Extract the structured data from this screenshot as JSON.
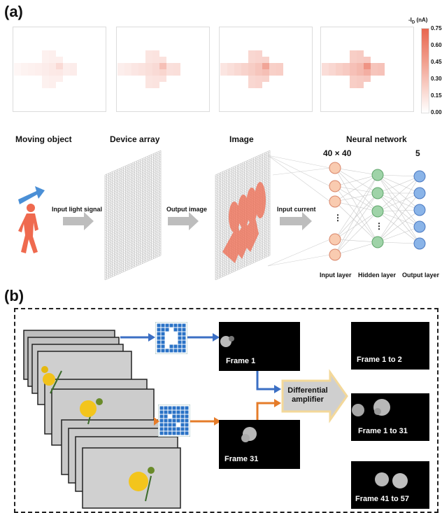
{
  "panel_a": {
    "label": "(a)",
    "colorbar": {
      "title": "-I",
      "title_sub": "D",
      "title_unit": " (nA)",
      "ticks": [
        "0.75",
        "0.60",
        "0.45",
        "0.30",
        "0.15",
        "0.00"
      ],
      "low_color": "#ffffff",
      "high_color": "#e8664f"
    },
    "heatmap_intensity": [
      0.18,
      0.32,
      0.5,
      0.62
    ],
    "headings": {
      "moving_object": "Moving object",
      "device_array": "Device array",
      "image": "Image",
      "neural_network": "Neural network"
    },
    "arrow_labels": {
      "input_light": "Input light signal",
      "output_image": "Output image",
      "input_current": "Input current"
    },
    "network": {
      "input_size": "40 × 40",
      "output_size": "5",
      "ellipsis": "⋮",
      "layers": [
        "Input layer",
        "Hidden layer",
        "Output layer"
      ]
    },
    "colors": {
      "input_node": "#f9cbb0",
      "hidden_node": "#9fd3a8",
      "output_node": "#8ab4e8",
      "person": "#ef6a4f",
      "motion_arrow": "#4a8fd6"
    }
  },
  "panel_b": {
    "label": "(b)",
    "frames": {
      "frame1": "Frame 1",
      "frame31": "Frame 31"
    },
    "amplifier": "Differential amplifier",
    "results": [
      "Frame 1 to 2",
      "Frame 1 to 31",
      "Frame 41 to 57"
    ],
    "colors": {
      "blue_arrow": "#3b6fc4",
      "orange_arrow": "#e57c2a",
      "grid": "#2a72c6"
    }
  }
}
